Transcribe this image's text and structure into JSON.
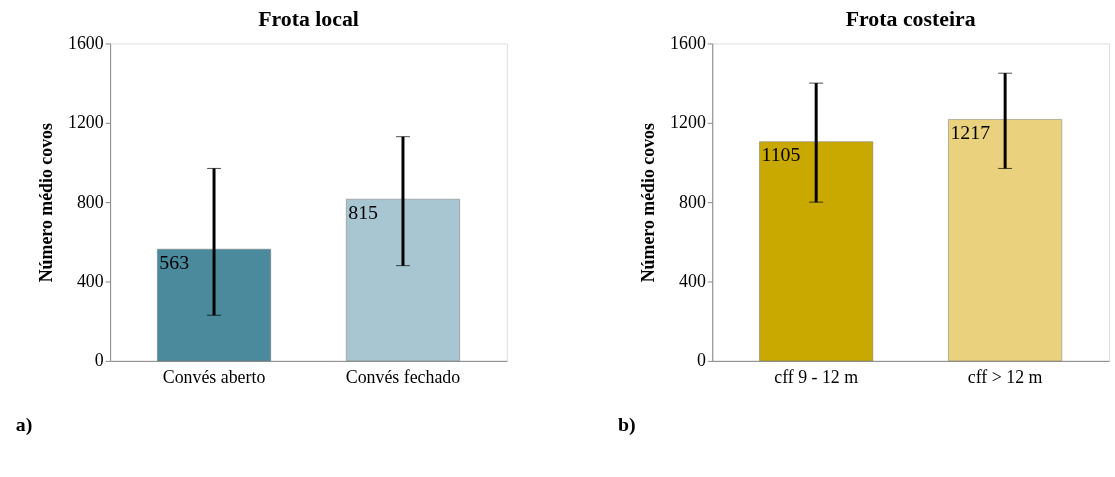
{
  "chart_data": [
    {
      "type": "bar",
      "title": "Frota local",
      "ylabel": "Número médio covos",
      "categories": [
        "Convés aberto",
        "Convés fechado"
      ],
      "values": [
        563,
        815
      ],
      "colors": [
        "#4a8a9c",
        "#a8c6d1"
      ],
      "errors": [
        [
          230,
          970
        ],
        [
          480,
          1130
        ]
      ],
      "ylim": [
        0,
        1600
      ],
      "yticks": [
        0,
        400,
        800,
        1200,
        1600
      ],
      "data_labels": true,
      "grid": false,
      "annotations": [
        "a)"
      ]
    },
    {
      "type": "bar",
      "title": "Frota costeira",
      "ylabel": "Número médio covos",
      "categories": [
        "cff 9 - 12 m",
        "cff > 12 m"
      ],
      "values": [
        1105,
        1217
      ],
      "colors": [
        "#c9a900",
        "#e9d17e"
      ],
      "errors": [
        [
          800,
          1400
        ],
        [
          970,
          1450
        ]
      ],
      "ylim": [
        0,
        1600
      ],
      "yticks": [
        0,
        400,
        800,
        1200,
        1600
      ],
      "data_labels": true,
      "grid": false,
      "annotations": [
        "b)"
      ]
    }
  ]
}
